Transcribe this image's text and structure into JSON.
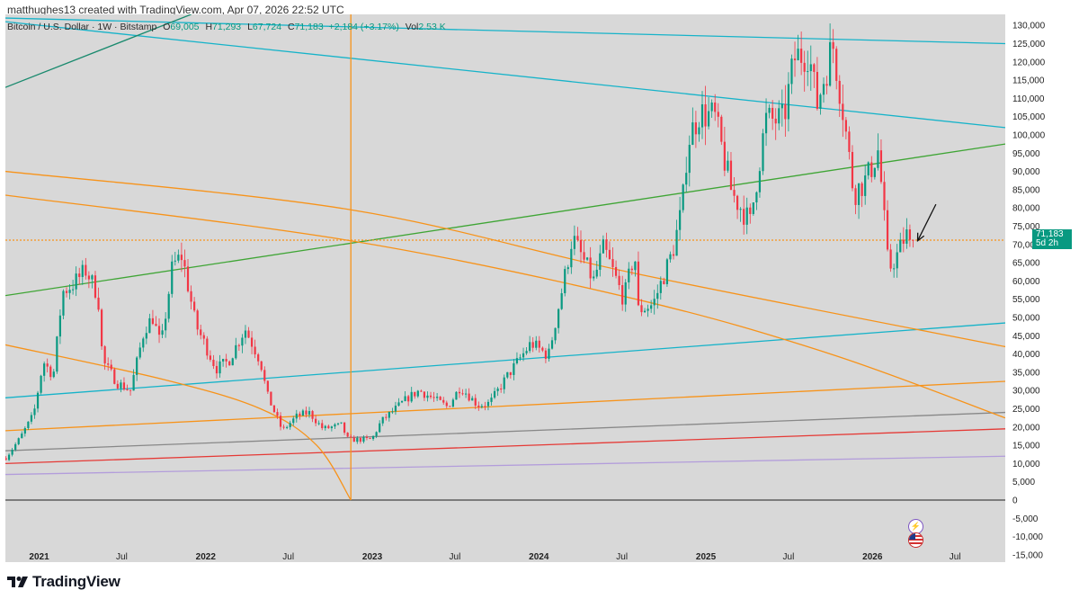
{
  "attribution": "matthughes13 created with TradingView.com, Apr 07, 2026 22:52 UTC",
  "legend": {
    "symbol": "Bitcoin / U.S. Dollar · 1W · Bitstamp",
    "o_label": "O",
    "o_value": "69,005",
    "h_label": "H",
    "h_value": "71,293",
    "l_label": "L",
    "l_value": "67,724",
    "c_label": "C",
    "c_value": "71,183",
    "change": "+2,184 (+3.17%)",
    "vol_label": "Vol",
    "vol_value": "2.53 K"
  },
  "price_tag": {
    "price": "71,183",
    "countdown": "5d 2h"
  },
  "brand": "TradingView",
  "colors": {
    "up": "#089981",
    "down": "#f23645",
    "background": "#d8d8d8",
    "orange": "#f7931a",
    "cyan": "#16b3c9",
    "green": "#3fa535"
  },
  "icons": [
    "tradingview-logo-icon",
    "event-icon",
    "us-flag-icon"
  ],
  "chart_data": {
    "type": "candlestick",
    "title": "Bitcoin / U.S. Dollar · 1W · Bitstamp",
    "xlabel": "",
    "ylabel": "",
    "x_range": [
      "2020-10-19",
      "2026-10-19"
    ],
    "y_range": [
      -17000,
      133000
    ],
    "grid": false,
    "y_ticks": [
      130000,
      125000,
      120000,
      115000,
      110000,
      105000,
      100000,
      95000,
      90000,
      85000,
      80000,
      75000,
      70000,
      65000,
      60000,
      55000,
      50000,
      45000,
      40000,
      35000,
      30000,
      25000,
      20000,
      15000,
      10000,
      5000,
      0,
      -5000,
      -10000,
      -15000
    ],
    "y_tick_labels": [
      "130,000",
      "125,000",
      "120,000",
      "115,000",
      "110,000",
      "105,000",
      "100,000",
      "95,000",
      "90,000",
      "85,000",
      "80,000",
      "75,000",
      "70,000",
      "65,000",
      "60,000",
      "55,000",
      "50,000",
      "45,000",
      "40,000",
      "35,000",
      "30,000",
      "25,000",
      "20,000",
      "15,000",
      "10,000",
      "5,000",
      "0",
      "-5,000",
      "-10,000",
      "-15,000"
    ],
    "x_ticks": [
      {
        "date": "2021-01-01",
        "label": "2021",
        "bold": true
      },
      {
        "date": "2021-07-01",
        "label": "Jul",
        "bold": false
      },
      {
        "date": "2022-01-01",
        "label": "2022",
        "bold": true
      },
      {
        "date": "2022-07-01",
        "label": "Jul",
        "bold": false
      },
      {
        "date": "2023-01-01",
        "label": "2023",
        "bold": true
      },
      {
        "date": "2023-07-01",
        "label": "Jul",
        "bold": false
      },
      {
        "date": "2024-01-01",
        "label": "2024",
        "bold": true
      },
      {
        "date": "2024-07-01",
        "label": "Jul",
        "bold": false
      },
      {
        "date": "2025-01-01",
        "label": "2025",
        "bold": true
      },
      {
        "date": "2025-07-01",
        "label": "Jul",
        "bold": false
      },
      {
        "date": "2026-01-01",
        "label": "2026",
        "bold": true
      },
      {
        "date": "2026-07-01",
        "label": "Jul",
        "bold": false
      }
    ],
    "last_price": 71183,
    "price_path": [
      [
        "2020-10-20",
        11500
      ],
      [
        "2020-11-20",
        17000
      ],
      [
        "2020-12-20",
        23500
      ],
      [
        "2021-01-10",
        38000
      ],
      [
        "2021-02-01",
        34000
      ],
      [
        "2021-02-21",
        57000
      ],
      [
        "2021-03-15",
        59000
      ],
      [
        "2021-04-14",
        63000
      ],
      [
        "2021-05-10",
        56000
      ],
      [
        "2021-05-20",
        38000
      ],
      [
        "2021-06-22",
        32000
      ],
      [
        "2021-07-20",
        30000
      ],
      [
        "2021-08-20",
        47000
      ],
      [
        "2021-09-07",
        50000
      ],
      [
        "2021-09-25",
        42000
      ],
      [
        "2021-10-20",
        64000
      ],
      [
        "2021-11-10",
        67000
      ],
      [
        "2021-12-10",
        48000
      ],
      [
        "2022-01-24",
        36000
      ],
      [
        "2022-02-20",
        38000
      ],
      [
        "2022-03-28",
        47000
      ],
      [
        "2022-05-01",
        38000
      ],
      [
        "2022-05-15",
        29000
      ],
      [
        "2022-06-18",
        19000
      ],
      [
        "2022-07-20",
        23000
      ],
      [
        "2022-08-15",
        24000
      ],
      [
        "2022-09-15",
        19500
      ],
      [
        "2022-10-25",
        20500
      ],
      [
        "2022-11-09",
        16500
      ],
      [
        "2022-12-31",
        16600
      ],
      [
        "2023-01-20",
        21500
      ],
      [
        "2023-03-20",
        28000
      ],
      [
        "2023-04-14",
        30000
      ],
      [
        "2023-06-15",
        25500
      ],
      [
        "2023-07-13",
        31000
      ],
      [
        "2023-08-20",
        26000
      ],
      [
        "2023-09-15",
        26500
      ],
      [
        "2023-10-24",
        34000
      ],
      [
        "2023-12-15",
        43000
      ],
      [
        "2024-01-22",
        39500
      ],
      [
        "2024-02-28",
        62000
      ],
      [
        "2024-03-14",
        72000
      ],
      [
        "2024-04-30",
        60000
      ],
      [
        "2024-05-22",
        69000
      ],
      [
        "2024-07-05",
        55000
      ],
      [
        "2024-07-29",
        68000
      ],
      [
        "2024-08-05",
        52000
      ],
      [
        "2024-09-07",
        53500
      ],
      [
        "2024-10-20",
        68000
      ],
      [
        "2024-11-10",
        80000
      ],
      [
        "2024-11-22",
        98000
      ],
      [
        "2024-12-17",
        106000
      ],
      [
        "2025-01-20",
        105000
      ],
      [
        "2025-02-27",
        84000
      ],
      [
        "2025-04-08",
        76000
      ],
      [
        "2025-05-12",
        104000
      ],
      [
        "2025-06-20",
        104000
      ],
      [
        "2025-07-14",
        121000
      ],
      [
        "2025-08-14",
        123000
      ],
      [
        "2025-09-01",
        108000
      ],
      [
        "2025-10-06",
        125000
      ],
      [
        "2025-10-25",
        110000
      ],
      [
        "2025-11-21",
        84000
      ],
      [
        "2025-12-20",
        88000
      ],
      [
        "2026-01-14",
        96000
      ],
      [
        "2026-02-05",
        63000
      ],
      [
        "2026-02-24",
        67000
      ],
      [
        "2026-03-16",
        73000
      ],
      [
        "2026-03-30",
        67000
      ],
      [
        "2026-04-06",
        71183
      ]
    ],
    "drawings": {
      "horizontal_price_line": {
        "price": 71183,
        "color": "#f7931a"
      },
      "vertical_line": {
        "date": "2022-11-15",
        "color": "#f7931a"
      },
      "lines": [
        {
          "color": "#16b3c9",
          "points": [
            [
              "2020-10-19",
              132000
            ],
            [
              "2026-10-19",
              125000
            ]
          ]
        },
        {
          "color": "#16b3c9",
          "points": [
            [
              "2020-10-19",
              131000
            ],
            [
              "2026-10-19",
              102000
            ]
          ]
        },
        {
          "color": "#16b3c9",
          "points": [
            [
              "2020-10-19",
              28000
            ],
            [
              "2026-10-19",
              48500
            ]
          ]
        },
        {
          "color": "#3fa535",
          "points": [
            [
              "2020-10-19",
              56000
            ],
            [
              "2026-10-19",
              97500
            ]
          ]
        },
        {
          "color": "#1a8a6e",
          "points": [
            [
              "2020-10-19",
              113000
            ],
            [
              "2021-11-30",
              133000
            ]
          ]
        },
        {
          "color": "#f7931a",
          "points": [
            [
              "2020-10-19",
              19000
            ],
            [
              "2026-10-19",
              32500
            ]
          ]
        },
        {
          "color": "#888888",
          "points": [
            [
              "2020-10-19",
              13500
            ],
            [
              "2026-10-19",
              24000
            ]
          ]
        },
        {
          "color": "#e53935",
          "points": [
            [
              "2020-10-19",
              10000
            ],
            [
              "2026-10-19",
              19500
            ]
          ]
        },
        {
          "color": "#b39ddb",
          "points": [
            [
              "2020-10-19",
              7000
            ],
            [
              "2026-10-19",
              12000
            ]
          ]
        },
        {
          "color": "#444444",
          "points": [
            [
              "2020-10-19",
              0
            ],
            [
              "2026-10-19",
              0
            ]
          ]
        }
      ],
      "curves": [
        {
          "color": "#f7931a",
          "points": [
            [
              "2020-10-19",
              90000
            ],
            [
              "2022-11-15",
              79500
            ],
            [
              "2024-08-01",
              62000
            ],
            [
              "2026-10-19",
              42000
            ]
          ]
        },
        {
          "color": "#f7931a",
          "points": [
            [
              "2020-10-19",
              83500
            ],
            [
              "2022-11-15",
              71000
            ],
            [
              "2024-08-01",
              55000
            ],
            [
              "2025-10-01",
              40000
            ],
            [
              "2026-10-19",
              22500
            ]
          ]
        },
        {
          "color": "#f7931a",
          "points": [
            [
              "2020-10-19",
              42500
            ],
            [
              "2021-10-01",
              33000
            ],
            [
              "2022-05-01",
              25000
            ],
            [
              "2022-09-01",
              15000
            ],
            [
              "2022-11-15",
              0
            ]
          ]
        }
      ],
      "arrow": {
        "from": [
          "2026-05-20",
          81000
        ],
        "to": [
          "2026-04-10",
          71000
        ],
        "color": "#111111"
      }
    }
  }
}
